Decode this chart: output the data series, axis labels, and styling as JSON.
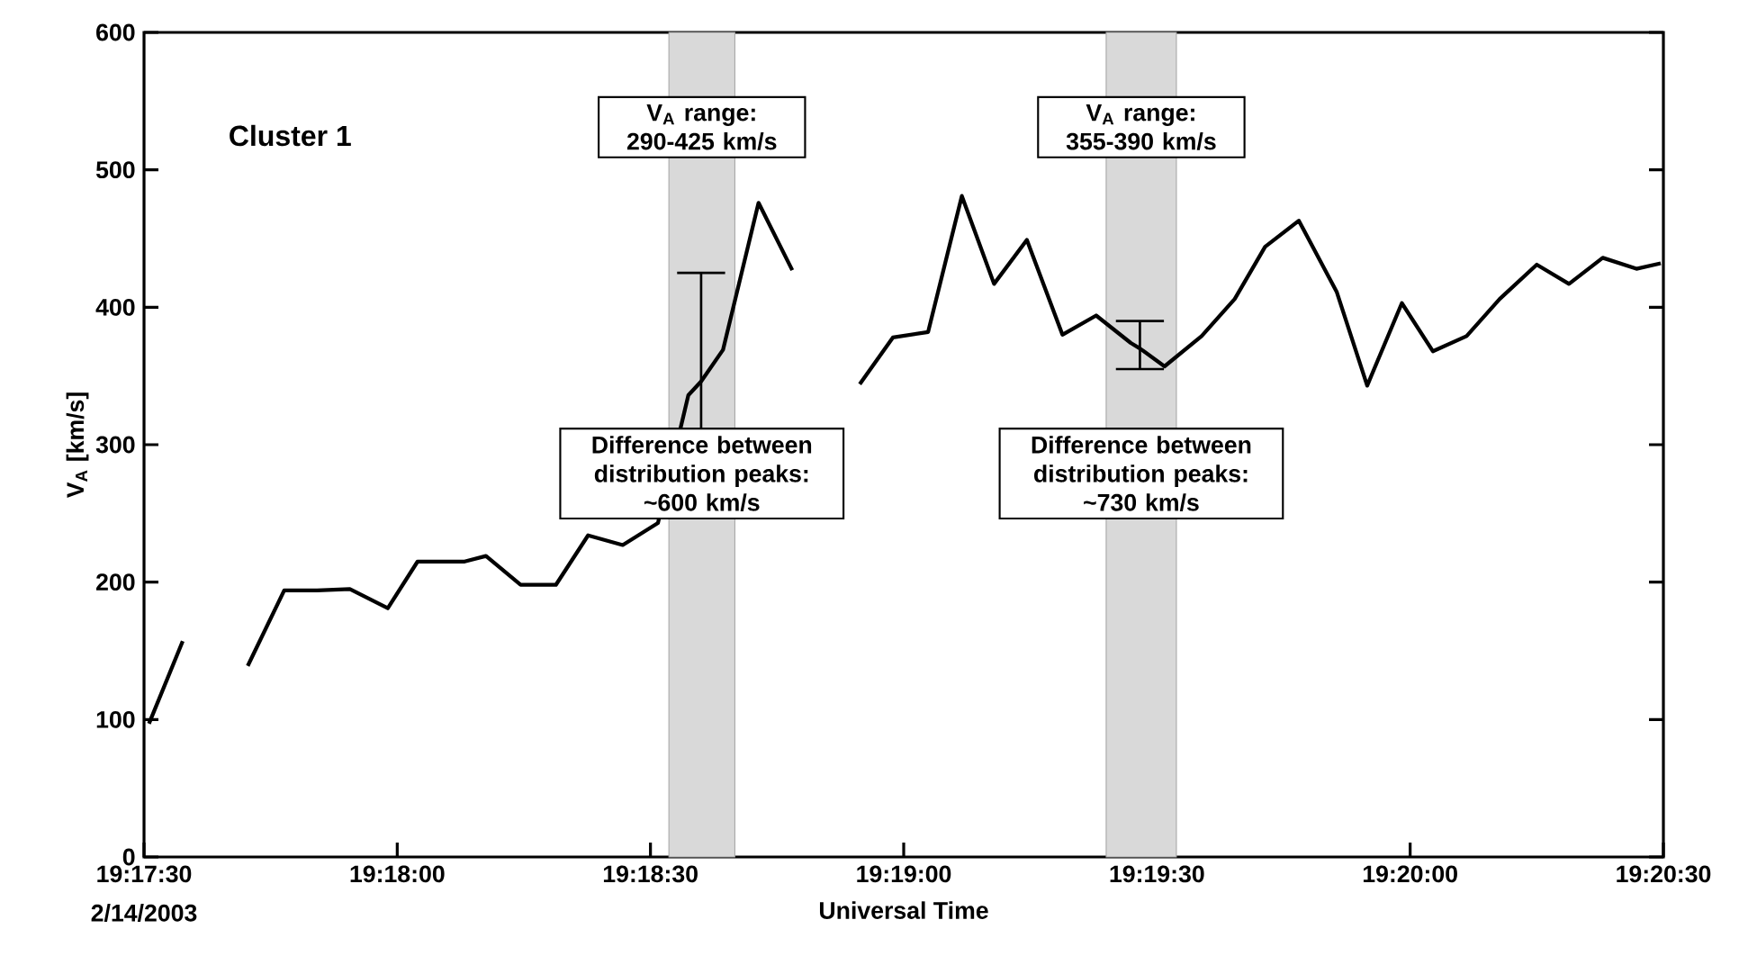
{
  "chart_data": {
    "type": "line",
    "xlabel": "Universal Time",
    "ylabel": "V$_{A}$ [km/s]",
    "xlim": [
      19.291667,
      19.341667
    ],
    "ylim": [
      0,
      600
    ],
    "xticks": [
      {
        "value": 19.291667,
        "label": "19:17:30"
      },
      {
        "value": 19.3,
        "label": "19:18:00"
      },
      {
        "value": 19.308333,
        "label": "19:18:30"
      },
      {
        "value": 19.316667,
        "label": "19:19:00"
      },
      {
        "value": 19.325,
        "label": "19:19:30"
      },
      {
        "value": 19.333333,
        "label": "19:20:00"
      },
      {
        "value": 19.341667,
        "label": "19:20:30"
      }
    ],
    "yticks": [
      0,
      100,
      200,
      300,
      400,
      500,
      600
    ],
    "series": [
      {
        "color": "#000000",
        "x": [
          19.29183,
          19.29294,
          19.294,
          19.29508,
          19.29628,
          19.29736,
          19.29844,
          19.29969,
          19.30067,
          19.30222,
          19.30292,
          19.30406,
          19.30522,
          19.30628,
          19.30742,
          19.30858,
          19.30958,
          19.31,
          19.31072,
          19.31189,
          19.313,
          19.314,
          19.31522,
          19.31631,
          19.31747,
          19.31858,
          19.31964,
          19.32072,
          19.32189,
          19.323,
          19.32414,
          19.32444,
          19.32525,
          19.32647,
          19.32756,
          19.32856,
          19.32967,
          19.33092,
          19.33192,
          19.33306,
          19.33408,
          19.33519,
          19.33628,
          19.3375,
          19.33856,
          19.33967,
          19.34078,
          19.34158
        ],
        "values": [
          97,
          157,
          null,
          139,
          194,
          194,
          195,
          181,
          215,
          215,
          219,
          198,
          198,
          234,
          227,
          243,
          336,
          346,
          369,
          476,
          427,
          null,
          344,
          378,
          382,
          481,
          417,
          449,
          380,
          394,
          374,
          370,
          357,
          379,
          406,
          444,
          463,
          411,
          343,
          403,
          368,
          379,
          406,
          431,
          417,
          436,
          428,
          432
        ],
        "errors": [
          null,
          null,
          null,
          null,
          null,
          null,
          null,
          null,
          null,
          null,
          null,
          null,
          null,
          null,
          null,
          null,
          null,
          [
            290,
            425
          ],
          null,
          null,
          null,
          null,
          null,
          null,
          null,
          null,
          null,
          null,
          null,
          null,
          null,
          [
            355,
            390
          ],
          null,
          null,
          null,
          null,
          null,
          null,
          null,
          null,
          null,
          null,
          null,
          null,
          null,
          null,
          null,
          null
        ]
      }
    ],
    "bands": [
      {
        "axis": "x",
        "from": 19.30894,
        "to": 19.31111,
        "color": "#d9d9d9"
      },
      {
        "axis": "x",
        "from": 19.32333,
        "to": 19.32564,
        "color": "#d9d9d9"
      }
    ],
    "annotations": [
      "Cluster 1",
      "V$_{A}$ range: 290-425 km/s",
      "Difference between distribution peaks:",
      "~600 km/s",
      "V$_{A}$ range: 355-390 km/s",
      "Difference between distribution peaks:",
      "~730 km/s",
      "2/14/2003"
    ]
  }
}
